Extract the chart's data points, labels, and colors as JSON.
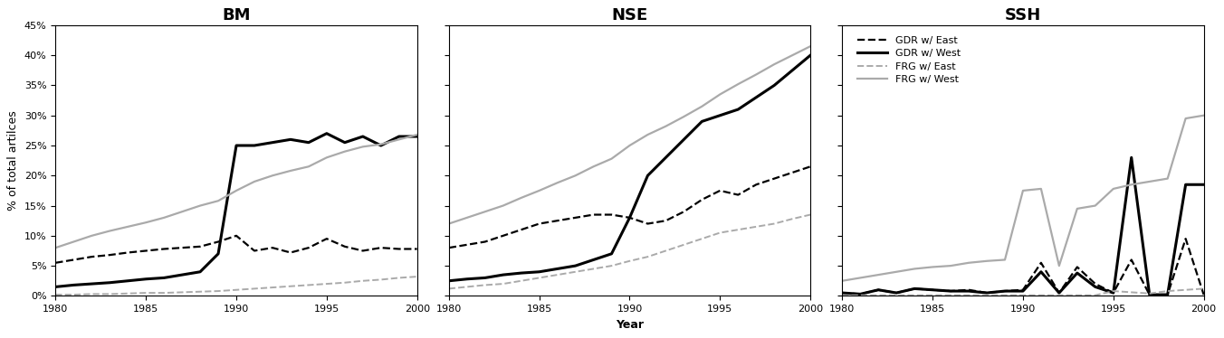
{
  "years": [
    1980,
    1981,
    1982,
    1983,
    1984,
    1985,
    1986,
    1987,
    1988,
    1989,
    1990,
    1991,
    1992,
    1993,
    1994,
    1995,
    1996,
    1997,
    1998,
    1999,
    2000
  ],
  "BM": {
    "GDR_East": [
      0.055,
      0.06,
      0.065,
      0.068,
      0.072,
      0.075,
      0.078,
      0.08,
      0.082,
      0.09,
      0.1,
      0.075,
      0.08,
      0.072,
      0.08,
      0.095,
      0.082,
      0.075,
      0.08,
      0.078,
      0.078
    ],
    "GDR_West": [
      0.015,
      0.018,
      0.02,
      0.022,
      0.025,
      0.028,
      0.03,
      0.035,
      0.04,
      0.07,
      0.25,
      0.25,
      0.255,
      0.26,
      0.255,
      0.27,
      0.255,
      0.265,
      0.25,
      0.265,
      0.265
    ],
    "FRG_East": [
      0.002,
      0.002,
      0.003,
      0.003,
      0.004,
      0.005,
      0.005,
      0.006,
      0.007,
      0.008,
      0.01,
      0.012,
      0.014,
      0.016,
      0.018,
      0.02,
      0.022,
      0.025,
      0.027,
      0.03,
      0.032
    ],
    "FRG_West": [
      0.08,
      0.09,
      0.1,
      0.108,
      0.115,
      0.122,
      0.13,
      0.14,
      0.15,
      0.158,
      0.175,
      0.19,
      0.2,
      0.208,
      0.215,
      0.23,
      0.24,
      0.248,
      0.252,
      0.26,
      0.268
    ]
  },
  "NSE": {
    "GDR_East": [
      0.08,
      0.085,
      0.09,
      0.1,
      0.11,
      0.12,
      0.125,
      0.13,
      0.135,
      0.135,
      0.13,
      0.12,
      0.125,
      0.14,
      0.16,
      0.175,
      0.168,
      0.185,
      0.195,
      0.205,
      0.215
    ],
    "GDR_West": [
      0.025,
      0.028,
      0.03,
      0.035,
      0.038,
      0.04,
      0.045,
      0.05,
      0.06,
      0.07,
      0.13,
      0.2,
      0.23,
      0.26,
      0.29,
      0.3,
      0.31,
      0.33,
      0.35,
      0.375,
      0.4
    ],
    "FRG_East": [
      0.012,
      0.015,
      0.018,
      0.02,
      0.025,
      0.03,
      0.035,
      0.04,
      0.045,
      0.05,
      0.058,
      0.065,
      0.075,
      0.085,
      0.095,
      0.105,
      0.11,
      0.115,
      0.12,
      0.128,
      0.135
    ],
    "FRG_West": [
      0.12,
      0.13,
      0.14,
      0.15,
      0.163,
      0.175,
      0.188,
      0.2,
      0.215,
      0.228,
      0.25,
      0.268,
      0.282,
      0.298,
      0.315,
      0.335,
      0.352,
      0.368,
      0.385,
      0.4,
      0.415
    ]
  },
  "SSH": {
    "GDR_East": [
      0.005,
      0.003,
      0.01,
      0.005,
      0.012,
      0.01,
      0.008,
      0.01,
      0.005,
      0.008,
      0.01,
      0.055,
      0.005,
      0.048,
      0.02,
      0.005,
      0.06,
      0.002,
      0.002,
      0.095,
      0.002
    ],
    "GDR_West": [
      0.005,
      0.003,
      0.01,
      0.005,
      0.012,
      0.01,
      0.008,
      0.008,
      0.005,
      0.008,
      0.008,
      0.04,
      0.005,
      0.038,
      0.015,
      0.005,
      0.23,
      0.002,
      0.002,
      0.185,
      0.185
    ],
    "FRG_East": [
      0.001,
      0.001,
      0.001,
      0.001,
      0.001,
      0.001,
      0.001,
      0.001,
      0.001,
      0.001,
      0.001,
      0.001,
      0.001,
      0.001,
      0.001,
      0.008,
      0.006,
      0.004,
      0.008,
      0.01,
      0.012
    ],
    "FRG_West": [
      0.025,
      0.03,
      0.035,
      0.04,
      0.045,
      0.048,
      0.05,
      0.055,
      0.058,
      0.06,
      0.175,
      0.178,
      0.05,
      0.145,
      0.15,
      0.178,
      0.185,
      0.19,
      0.195,
      0.295,
      0.3
    ]
  },
  "panel_titles": [
    "BM",
    "NSE",
    "SSH"
  ],
  "ylabel": "% of total artilces",
  "xlabel": "Year",
  "ylim": [
    0,
    0.45
  ],
  "yticks": [
    0.0,
    0.05,
    0.1,
    0.15,
    0.2,
    0.25,
    0.3,
    0.35,
    0.4,
    0.45
  ],
  "xlim": [
    1980,
    2000
  ],
  "xticks": [
    1980,
    1985,
    1990,
    1995,
    2000
  ],
  "legend_labels": [
    "GDR w/ East",
    "GDR w/ West",
    "FRG w/ East",
    "FRG w/ West"
  ],
  "line_keys": [
    "GDR_East",
    "GDR_West",
    "FRG_East",
    "FRG_West"
  ],
  "line_styles": {
    "GDR_East": {
      "color": "#000000",
      "linestyle": "--",
      "linewidth": 1.6
    },
    "GDR_West": {
      "color": "#000000",
      "linestyle": "-",
      "linewidth": 2.2
    },
    "FRG_East": {
      "color": "#aaaaaa",
      "linestyle": "--",
      "linewidth": 1.4
    },
    "FRG_West": {
      "color": "#aaaaaa",
      "linestyle": "-",
      "linewidth": 1.6
    }
  },
  "title_fontsize": 13,
  "ylabel_fontsize": 9,
  "xlabel_fontsize": 9,
  "tick_labelsize": 8,
  "legend_fontsize": 8
}
